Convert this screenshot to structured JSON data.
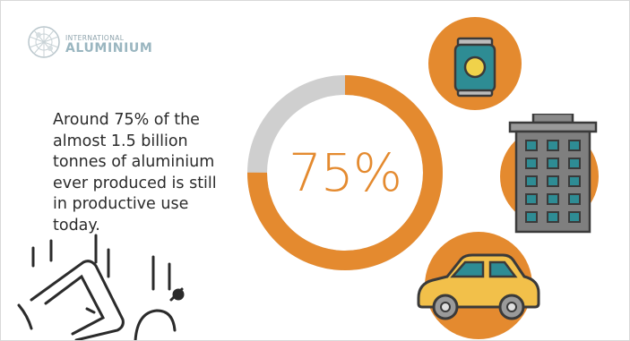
{
  "logo": {
    "line1": "INTERNATIONAL",
    "line2": "ALUMINIUM"
  },
  "claim": {
    "text": "Around 75% of the almost 1.5 billion tonnes of aluminium ever produced is still in productive use today."
  },
  "donut": {
    "label": "75%",
    "value_percent": 75
  },
  "icons": [
    "can-icon",
    "building-icon",
    "car-icon",
    "window-frame-icon",
    "pan-icon"
  ],
  "colors": {
    "accent_orange": "#e48a2f",
    "ring_gray": "#cfcfcf",
    "text_dark": "#2b2b2b",
    "teal": "#2e8c94",
    "car_yellow": "#f2c04a",
    "building_gray": "#7f7f7f",
    "logo_blue": "#9ab6c0"
  }
}
